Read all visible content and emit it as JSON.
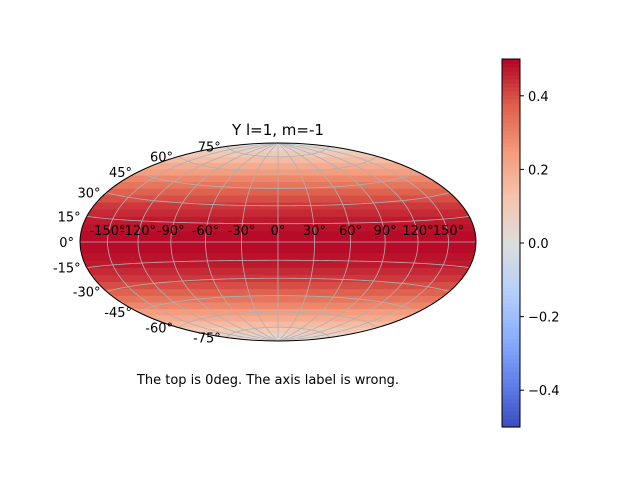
{
  "chart_data": {
    "type": "heatmap",
    "projection": "hammer",
    "title": "Y l=1, m=-1",
    "annotation": "The top is 0deg. The axis label is wrong.",
    "colormap": "coolwarm",
    "grid": true,
    "longitude_ticks": [
      "-150°",
      "-120°",
      "-90°",
      "-60°",
      "-30°",
      "0°",
      "30°",
      "60°",
      "90°",
      "120°",
      "150°"
    ],
    "latitude_ticks": [
      "-75°",
      "-60°",
      "-45°",
      "-30°",
      "-15°",
      "0°",
      "15°",
      "30°",
      "45°",
      "60°",
      "75°"
    ],
    "latitude_band_values": [
      {
        "lat": -84,
        "value": 0.05
      },
      {
        "lat": -78,
        "value": 0.1
      },
      {
        "lat": -72,
        "value": 0.15
      },
      {
        "lat": -66,
        "value": 0.2
      },
      {
        "lat": -60,
        "value": 0.24
      },
      {
        "lat": -54,
        "value": 0.29
      },
      {
        "lat": -48,
        "value": 0.33
      },
      {
        "lat": -42,
        "value": 0.37
      },
      {
        "lat": -36,
        "value": 0.4
      },
      {
        "lat": -30,
        "value": 0.43
      },
      {
        "lat": -24,
        "value": 0.45
      },
      {
        "lat": -18,
        "value": 0.47
      },
      {
        "lat": -12,
        "value": 0.48
      },
      {
        "lat": -6,
        "value": 0.49
      },
      {
        "lat": 0,
        "value": 0.49
      },
      {
        "lat": 6,
        "value": 0.49
      },
      {
        "lat": 12,
        "value": 0.48
      },
      {
        "lat": 18,
        "value": 0.47
      },
      {
        "lat": 24,
        "value": 0.45
      },
      {
        "lat": 30,
        "value": 0.43
      },
      {
        "lat": 36,
        "value": 0.4
      },
      {
        "lat": 42,
        "value": 0.37
      },
      {
        "lat": 48,
        "value": 0.33
      },
      {
        "lat": 54,
        "value": 0.29
      },
      {
        "lat": 60,
        "value": 0.24
      },
      {
        "lat": 66,
        "value": 0.2
      },
      {
        "lat": 72,
        "value": 0.15
      },
      {
        "lat": 78,
        "value": 0.1
      },
      {
        "lat": 84,
        "value": 0.05
      }
    ],
    "colorbar": {
      "vmin": -0.5,
      "vmax": 0.5,
      "tick_values": [
        -0.4,
        -0.2,
        0.0,
        0.2,
        0.4
      ],
      "tick_labels": [
        "−0.4",
        "−0.2",
        "0.0",
        "0.2",
        "0.4"
      ]
    }
  }
}
